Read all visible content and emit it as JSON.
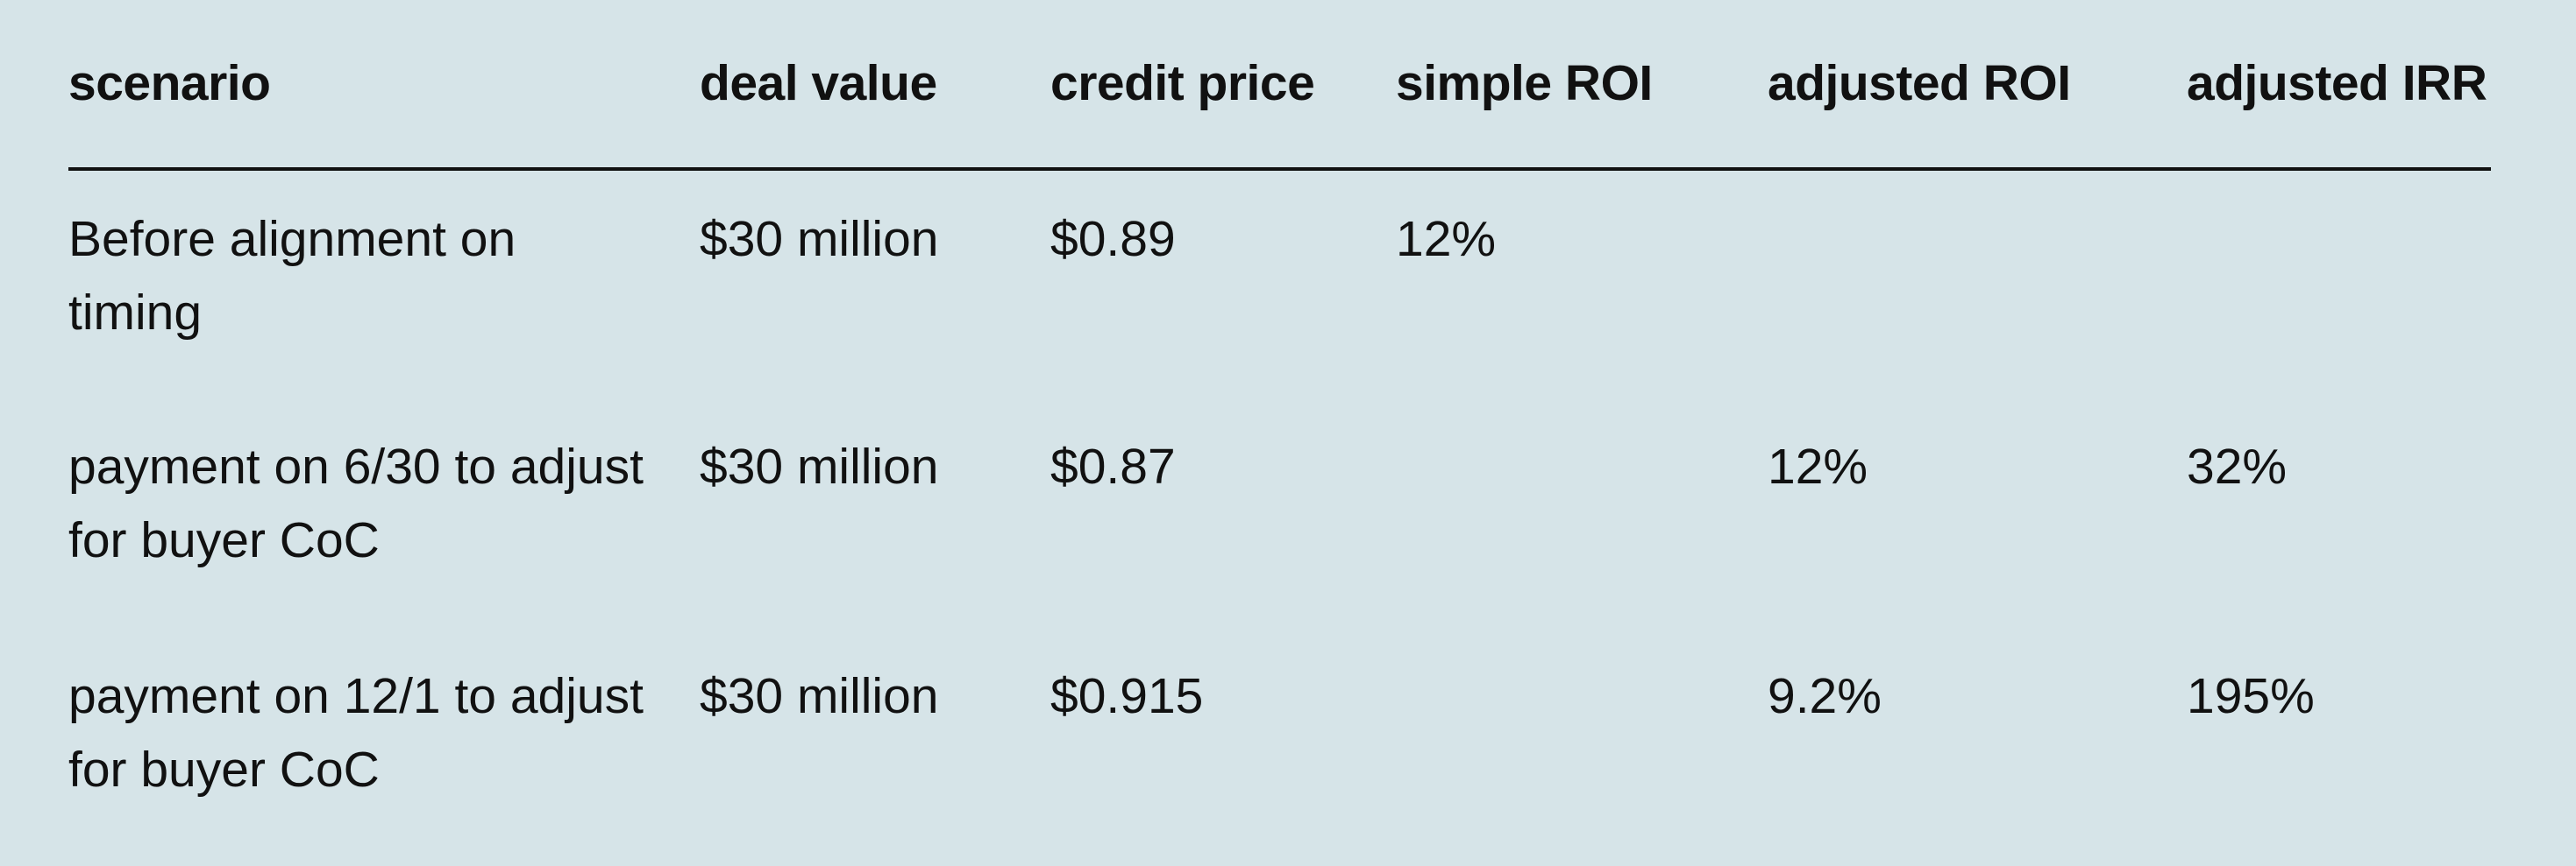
{
  "table": {
    "headers": [
      "scenario",
      "deal value",
      "credit price",
      "simple ROI",
      "adjusted ROI",
      "adjusted IRR"
    ],
    "rows": [
      {
        "scenario": "Before alignment on timing",
        "deal_value": "$30 million",
        "credit_price": "$0.89",
        "simple_roi": "12%",
        "adjusted_roi": "",
        "adjusted_irr": ""
      },
      {
        "scenario": "payment on 6/30 to adjust for buyer CoC",
        "deal_value": "$30 million",
        "credit_price": "$0.87",
        "simple_roi": "",
        "adjusted_roi": "12%",
        "adjusted_irr": "32%"
      },
      {
        "scenario": "payment on 12/1 to adjust for buyer CoC",
        "deal_value": "$30 million",
        "credit_price": "$0.915",
        "simple_roi": "",
        "adjusted_roi": "9.2%",
        "adjusted_irr": "195%"
      }
    ]
  },
  "colors": {
    "background": "#d6e4e8",
    "text": "#111111",
    "rule": "#111111"
  }
}
